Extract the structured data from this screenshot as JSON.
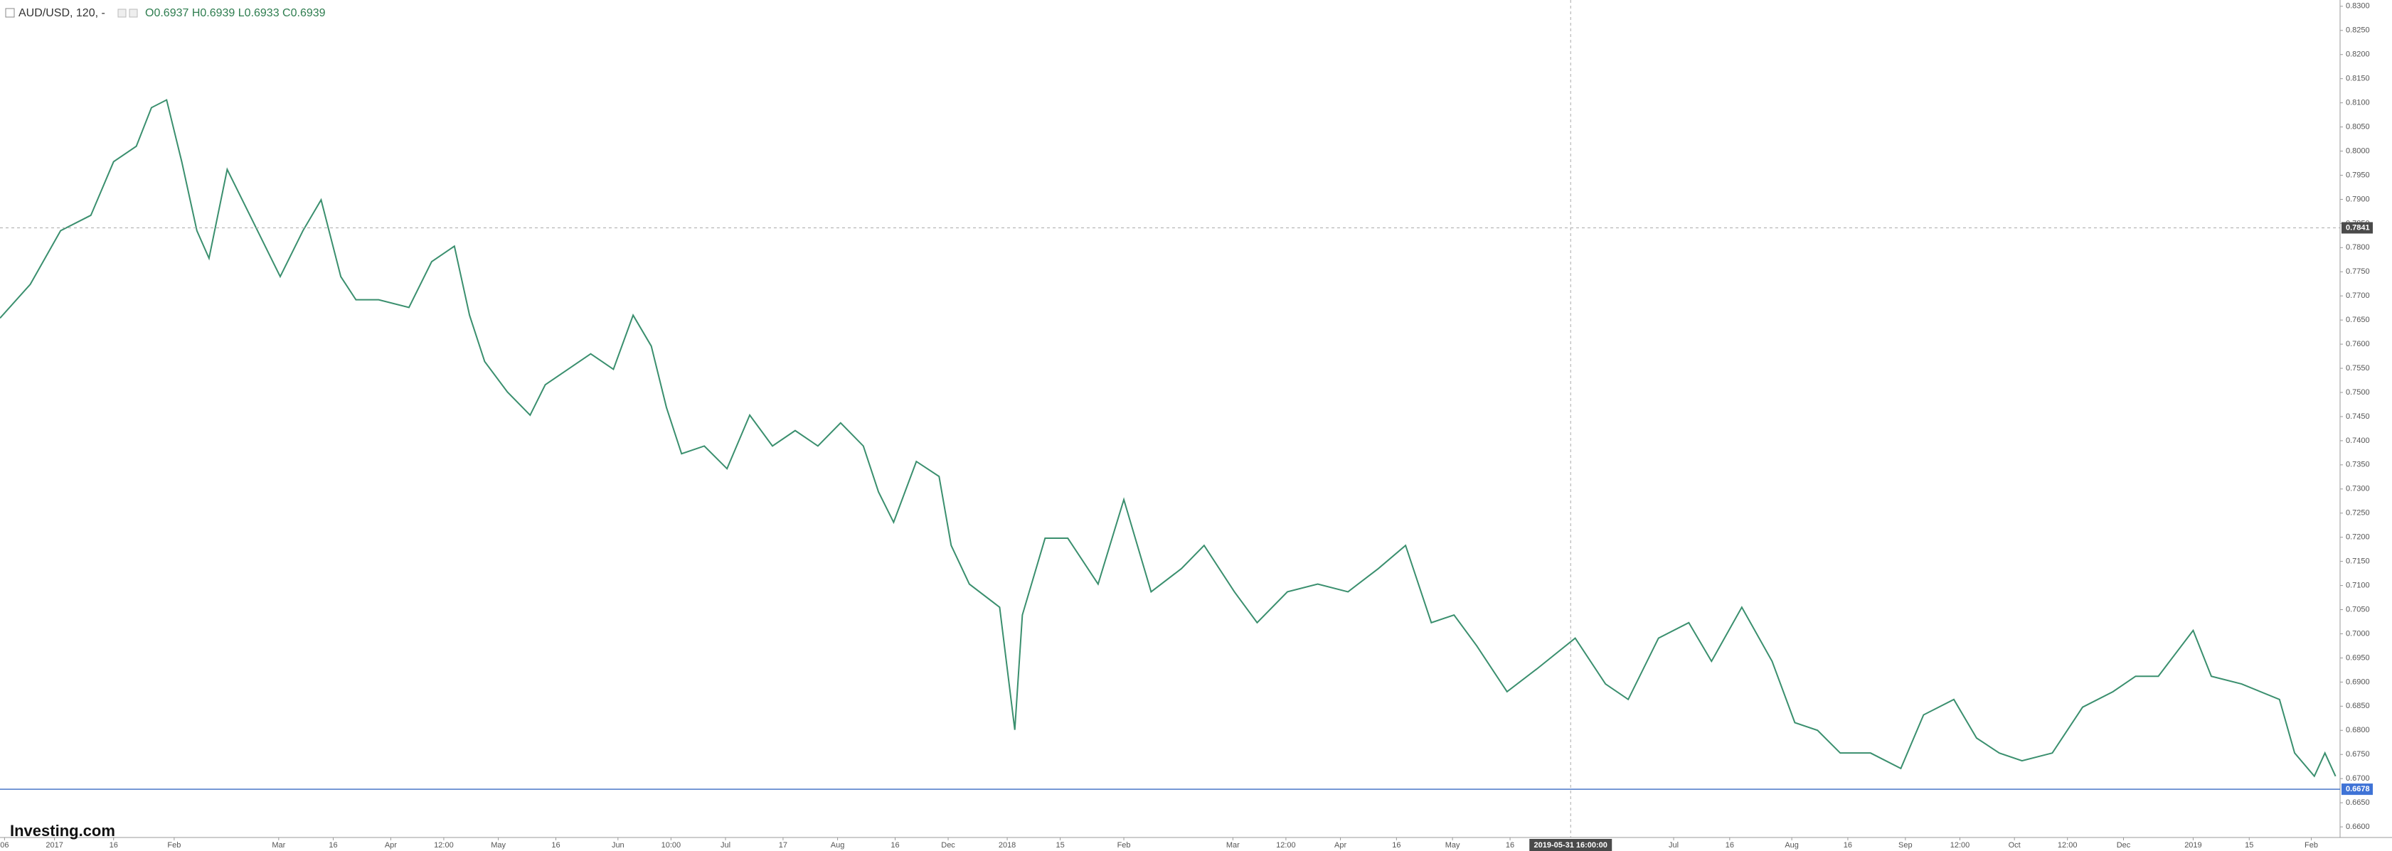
{
  "chart_data": {
    "type": "line",
    "symbol": "AUD/USD, 120, -",
    "ohlc": "O0.6937 H0.6939 L0.6933 C0.6939",
    "logo": "Investing.com",
    "color": "#3a8f6e",
    "xlim": [
      0,
      1545
    ],
    "ylim": [
      0.6578,
      0.8313
    ],
    "grid": false,
    "x": [
      0,
      20,
      40,
      60,
      75,
      90,
      100,
      110,
      120,
      130,
      138,
      150,
      165,
      185,
      200,
      212,
      225,
      235,
      250,
      270,
      285,
      300,
      310,
      320,
      335,
      350,
      360,
      375,
      390,
      405,
      418,
      430,
      440,
      450,
      465,
      480,
      495,
      510,
      525,
      540,
      555,
      570,
      580,
      590,
      605,
      620,
      628,
      640,
      660,
      670,
      675,
      690,
      705,
      725,
      742,
      760,
      780,
      795,
      815,
      830,
      850,
      870,
      890,
      910,
      928,
      945,
      960,
      975,
      995,
      1015,
      1040,
      1060,
      1075,
      1095,
      1115,
      1130,
      1150,
      1170,
      1185,
      1200,
      1215,
      1235,
      1255,
      1270,
      1290,
      1305,
      1320,
      1335,
      1355,
      1375,
      1395,
      1410,
      1425,
      1448,
      1460,
      1480,
      1505,
      1515,
      1528,
      1535,
      1542
    ],
    "series": [
      {
        "name": "AUD/USD",
        "color": "#3a8f6e",
        "values": [
          0.7654,
          0.7724,
          0.7835,
          0.7867,
          0.7978,
          0.801,
          0.809,
          0.8106,
          0.7978,
          0.7835,
          0.7778,
          0.7962,
          0.7867,
          0.774,
          0.7835,
          0.7899,
          0.774,
          0.7692,
          0.7692,
          0.7676,
          0.7771,
          0.7803,
          0.766,
          0.7564,
          0.7501,
          0.7453,
          0.7516,
          0.7548,
          0.758,
          0.7548,
          0.766,
          0.7596,
          0.7469,
          0.7373,
          0.7389,
          0.7342,
          0.7453,
          0.7389,
          0.7421,
          0.7389,
          0.7437,
          0.7389,
          0.7294,
          0.7231,
          0.7357,
          0.7326,
          0.7183,
          0.7103,
          0.7055,
          0.6801,
          0.7039,
          0.7198,
          0.7198,
          0.7103,
          0.7278,
          0.7087,
          0.7135,
          0.7183,
          0.7087,
          0.7023,
          0.7087,
          0.7103,
          0.7087,
          0.7135,
          0.7183,
          0.7023,
          0.7039,
          0.6975,
          0.688,
          0.6928,
          0.6991,
          0.6896,
          0.6864,
          0.6991,
          0.7023,
          0.6943,
          0.7055,
          0.6943,
          0.6816,
          0.68,
          0.6753,
          0.6753,
          0.6721,
          0.6832,
          0.6864,
          0.6784,
          0.6753,
          0.6737,
          0.6753,
          0.6848,
          0.688,
          0.6912,
          0.6912,
          0.7007,
          0.6912,
          0.6896,
          0.6864,
          0.6753,
          0.6705,
          0.6753,
          0.6705
        ]
      }
    ],
    "xticks": [
      {
        "value": 3,
        "label": "06"
      },
      {
        "value": 36,
        "label": "2017"
      },
      {
        "value": 75,
        "label": "16"
      },
      {
        "value": 115,
        "label": "Feb"
      },
      {
        "value": 184,
        "label": "Mar"
      },
      {
        "value": 220,
        "label": "16"
      },
      {
        "value": 258,
        "label": "Apr"
      },
      {
        "value": 293,
        "label": "12:00"
      },
      {
        "value": 329,
        "label": "May"
      },
      {
        "value": 367,
        "label": "16"
      },
      {
        "value": 408,
        "label": "Jun"
      },
      {
        "value": 443,
        "label": "10:00"
      },
      {
        "value": 479,
        "label": "Jul"
      },
      {
        "value": 517,
        "label": "17"
      },
      {
        "value": 553,
        "label": "Aug"
      },
      {
        "value": 591,
        "label": "16"
      },
      {
        "value": 626,
        "label": "Dec"
      },
      {
        "value": 665,
        "label": "2018"
      },
      {
        "value": 700,
        "label": "15"
      },
      {
        "value": 742,
        "label": "Feb"
      },
      {
        "value": 814,
        "label": "Mar"
      },
      {
        "value": 849,
        "label": "12:00"
      },
      {
        "value": 885,
        "label": "Apr"
      },
      {
        "value": 922,
        "label": "16"
      },
      {
        "value": 959,
        "label": "May"
      },
      {
        "value": 997,
        "label": "16"
      },
      {
        "value": 1105,
        "label": "Jul"
      },
      {
        "value": 1142,
        "label": "16"
      },
      {
        "value": 1183,
        "label": "Aug"
      },
      {
        "value": 1220,
        "label": "16"
      },
      {
        "value": 1258,
        "label": "Sep"
      },
      {
        "value": 1294,
        "label": "12:00"
      },
      {
        "value": 1330,
        "label": "Oct"
      },
      {
        "value": 1365,
        "label": "12:00"
      },
      {
        "value": 1402,
        "label": "Dec"
      },
      {
        "value": 1448,
        "label": "2019"
      },
      {
        "value": 1485,
        "label": "15"
      },
      {
        "value": 1526,
        "label": "Feb"
      }
    ],
    "yticks": [
      {
        "value": 0.66,
        "label": "0.6600"
      },
      {
        "value": 0.665,
        "label": "0.6650"
      },
      {
        "value": 0.67,
        "label": "0.6700"
      },
      {
        "value": 0.675,
        "label": "0.6750"
      },
      {
        "value": 0.68,
        "label": "0.6800"
      },
      {
        "value": 0.685,
        "label": "0.6850"
      },
      {
        "value": 0.69,
        "label": "0.6900"
      },
      {
        "value": 0.695,
        "label": "0.6950"
      },
      {
        "value": 0.7,
        "label": "0.7000"
      },
      {
        "value": 0.705,
        "label": "0.7050"
      },
      {
        "value": 0.71,
        "label": "0.7100"
      },
      {
        "value": 0.715,
        "label": "0.7150"
      },
      {
        "value": 0.72,
        "label": "0.7200"
      },
      {
        "value": 0.725,
        "label": "0.7250"
      },
      {
        "value": 0.73,
        "label": "0.7300"
      },
      {
        "value": 0.735,
        "label": "0.7350"
      },
      {
        "value": 0.74,
        "label": "0.7400"
      },
      {
        "value": 0.745,
        "label": "0.7450"
      },
      {
        "value": 0.75,
        "label": "0.7500"
      },
      {
        "value": 0.755,
        "label": "0.7550"
      },
      {
        "value": 0.76,
        "label": "0.7600"
      },
      {
        "value": 0.765,
        "label": "0.7650"
      },
      {
        "value": 0.77,
        "label": "0.7700"
      },
      {
        "value": 0.775,
        "label": "0.7750"
      },
      {
        "value": 0.78,
        "label": "0.7800"
      },
      {
        "value": 0.785,
        "label": "0.7850"
      },
      {
        "value": 0.79,
        "label": "0.7900"
      },
      {
        "value": 0.795,
        "label": "0.7950"
      },
      {
        "value": 0.8,
        "label": "0.8000"
      },
      {
        "value": 0.805,
        "label": "0.8050"
      },
      {
        "value": 0.81,
        "label": "0.8100"
      },
      {
        "value": 0.815,
        "label": "0.8150"
      },
      {
        "value": 0.82,
        "label": "0.8200"
      },
      {
        "value": 0.825,
        "label": "0.8250"
      },
      {
        "value": 0.83,
        "label": "0.8300"
      }
    ],
    "crosshair": {
      "x": {
        "value": 1037,
        "label": "2019-05-31 16:00:00"
      },
      "y": {
        "value": 0.7841,
        "label": "0.7841"
      }
    },
    "last_price": {
      "value": 0.6678,
      "label": "0.6678"
    }
  }
}
